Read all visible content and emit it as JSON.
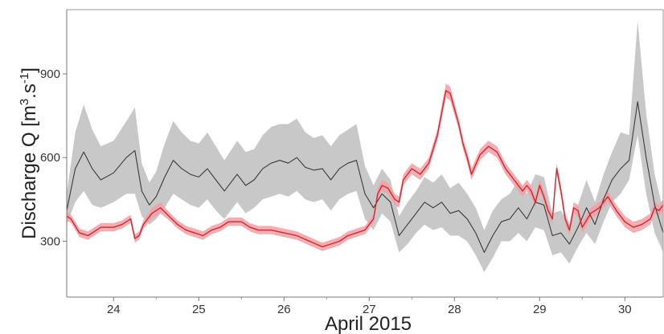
{
  "chart_data": {
    "type": "line",
    "title": "",
    "xlabel": "April 2015",
    "ylabel": {
      "prefix": "Discharge Q [m",
      "sup1": "3",
      "mid": ".s",
      "sup2": "-1",
      "suffix": "]"
    },
    "x_range": [
      23.45,
      30.45
    ],
    "y_range": [
      100,
      1130
    ],
    "x_ticks": [
      24,
      25,
      26,
      27,
      28,
      29,
      30
    ],
    "x_tick_labels": [
      "24",
      "25",
      "26",
      "27",
      "28",
      "29",
      "30"
    ],
    "y_ticks": [
      300,
      600,
      900
    ],
    "y_tick_labels": [
      "300",
      "600",
      "900"
    ],
    "grid": false,
    "legend": "none",
    "colors": {
      "gray_line": "#3a3a3a",
      "gray_band": "#c8c8c8",
      "red_line": "#d8242c",
      "red_band": "#f0a0a6"
    },
    "series": [
      {
        "color": "#3a3a3a",
        "band_color": "#c8c8c8",
        "x": [
          23.45,
          23.55,
          23.65,
          23.75,
          23.85,
          24.0,
          24.15,
          24.25,
          24.33,
          24.42,
          24.5,
          24.6,
          24.7,
          24.8,
          24.9,
          25.0,
          25.1,
          25.2,
          25.3,
          25.45,
          25.55,
          25.65,
          25.75,
          25.85,
          25.95,
          26.05,
          26.15,
          26.25,
          26.35,
          26.45,
          26.55,
          26.65,
          26.75,
          26.85,
          26.95,
          27.05,
          27.15,
          27.25,
          27.35,
          27.45,
          27.55,
          27.65,
          27.75,
          27.85,
          27.95,
          28.05,
          28.15,
          28.25,
          28.35,
          28.45,
          28.55,
          28.65,
          28.75,
          28.85,
          28.95,
          29.05,
          29.15,
          29.25,
          29.35,
          29.45,
          29.55,
          29.65,
          29.75,
          29.85,
          29.95,
          30.05,
          30.15,
          30.25,
          30.35,
          30.45
        ],
        "y": [
          410,
          560,
          620,
          560,
          520,
          545,
          600,
          625,
          480,
          430,
          460,
          530,
          590,
          560,
          540,
          530,
          560,
          520,
          480,
          540,
          500,
          520,
          560,
          580,
          590,
          580,
          600,
          565,
          555,
          560,
          520,
          560,
          580,
          590,
          470,
          420,
          470,
          440,
          320,
          360,
          400,
          440,
          420,
          440,
          400,
          410,
          380,
          330,
          260,
          320,
          370,
          380,
          420,
          380,
          440,
          430,
          320,
          330,
          290,
          350,
          420,
          360,
          450,
          520,
          560,
          590,
          800,
          600,
          430,
          330
        ],
        "lower": [
          360,
          440,
          480,
          430,
          420,
          440,
          470,
          470,
          390,
          360,
          380,
          420,
          470,
          450,
          430,
          420,
          450,
          410,
          380,
          440,
          400,
          420,
          450,
          460,
          470,
          460,
          480,
          450,
          440,
          450,
          410,
          450,
          470,
          480,
          380,
          340,
          400,
          370,
          260,
          290,
          330,
          360,
          340,
          350,
          320,
          320,
          300,
          250,
          190,
          240,
          300,
          300,
          330,
          300,
          350,
          340,
          250,
          260,
          220,
          280,
          330,
          290,
          370,
          440,
          470,
          520,
          680,
          470,
          330,
          260
        ],
        "upper": [
          470,
          690,
          790,
          700,
          640,
          660,
          730,
          780,
          580,
          510,
          550,
          650,
          730,
          690,
          660,
          650,
          690,
          640,
          590,
          660,
          620,
          630,
          680,
          710,
          720,
          720,
          740,
          690,
          670,
          680,
          640,
          680,
          700,
          720,
          570,
          500,
          560,
          520,
          390,
          440,
          480,
          530,
          510,
          540,
          490,
          510,
          470,
          420,
          340,
          410,
          450,
          470,
          520,
          470,
          540,
          530,
          400,
          410,
          360,
          430,
          520,
          440,
          540,
          620,
          690,
          680,
          1090,
          760,
          540,
          410
        ]
      },
      {
        "color": "#d8242c",
        "band_color": "#f0a0a6",
        "x": [
          23.45,
          23.5,
          23.6,
          23.7,
          23.85,
          24.0,
          24.1,
          24.2,
          24.25,
          24.3,
          24.35,
          24.45,
          24.55,
          24.65,
          24.75,
          24.85,
          24.95,
          25.05,
          25.15,
          25.25,
          25.35,
          25.5,
          25.6,
          25.7,
          25.85,
          26.0,
          26.15,
          26.3,
          26.45,
          26.55,
          26.65,
          26.75,
          26.85,
          26.95,
          27.05,
          27.1,
          27.15,
          27.22,
          27.3,
          27.35,
          27.4,
          27.5,
          27.6,
          27.7,
          27.8,
          27.85,
          27.9,
          27.95,
          28.05,
          28.1,
          28.15,
          28.2,
          28.3,
          28.4,
          28.5,
          28.6,
          28.7,
          28.8,
          28.85,
          28.9,
          28.95,
          29.0,
          29.05,
          29.1,
          29.15,
          29.2,
          29.25,
          29.3,
          29.35,
          29.4,
          29.45,
          29.5,
          29.6,
          29.7,
          29.8,
          29.9,
          30.0,
          30.1,
          30.2,
          30.3,
          30.35,
          30.4,
          30.45
        ],
        "y": [
          390,
          380,
          330,
          320,
          350,
          350,
          360,
          380,
          310,
          320,
          360,
          400,
          420,
          390,
          360,
          340,
          330,
          320,
          340,
          350,
          370,
          370,
          350,
          340,
          340,
          330,
          320,
          300,
          280,
          290,
          300,
          320,
          330,
          340,
          380,
          470,
          500,
          490,
          450,
          440,
          520,
          560,
          540,
          580,
          680,
          760,
          840,
          830,
          720,
          650,
          600,
          540,
          610,
          640,
          620,
          560,
          520,
          480,
          500,
          480,
          440,
          500,
          460,
          410,
          380,
          560,
          480,
          380,
          340,
          420,
          410,
          350,
          400,
          420,
          460,
          410,
          370,
          350,
          360,
          380,
          420,
          410,
          430
        ],
        "lower": [
          375,
          365,
          315,
          305,
          335,
          335,
          345,
          365,
          295,
          305,
          345,
          380,
          400,
          375,
          345,
          325,
          315,
          305,
          325,
          335,
          355,
          355,
          335,
          325,
          325,
          315,
          305,
          285,
          265,
          275,
          285,
          305,
          315,
          325,
          365,
          450,
          480,
          470,
          430,
          420,
          500,
          540,
          520,
          560,
          660,
          735,
          815,
          805,
          700,
          630,
          580,
          520,
          590,
          620,
          600,
          540,
          500,
          460,
          480,
          460,
          420,
          480,
          440,
          390,
          360,
          540,
          460,
          360,
          320,
          400,
          390,
          330,
          380,
          400,
          440,
          390,
          350,
          330,
          340,
          360,
          400,
          390,
          410
        ],
        "upper": [
          405,
          395,
          345,
          335,
          365,
          365,
          375,
          395,
          325,
          335,
          375,
          420,
          440,
          405,
          375,
          355,
          345,
          335,
          355,
          365,
          385,
          385,
          365,
          355,
          355,
          345,
          335,
          315,
          295,
          305,
          315,
          335,
          345,
          355,
          395,
          490,
          520,
          510,
          470,
          460,
          540,
          580,
          560,
          600,
          700,
          785,
          865,
          855,
          740,
          670,
          620,
          560,
          630,
          660,
          640,
          580,
          540,
          500,
          520,
          500,
          460,
          520,
          480,
          430,
          400,
          580,
          500,
          400,
          360,
          440,
          430,
          370,
          420,
          440,
          480,
          430,
          390,
          370,
          380,
          400,
          440,
          430,
          450
        ]
      }
    ]
  }
}
